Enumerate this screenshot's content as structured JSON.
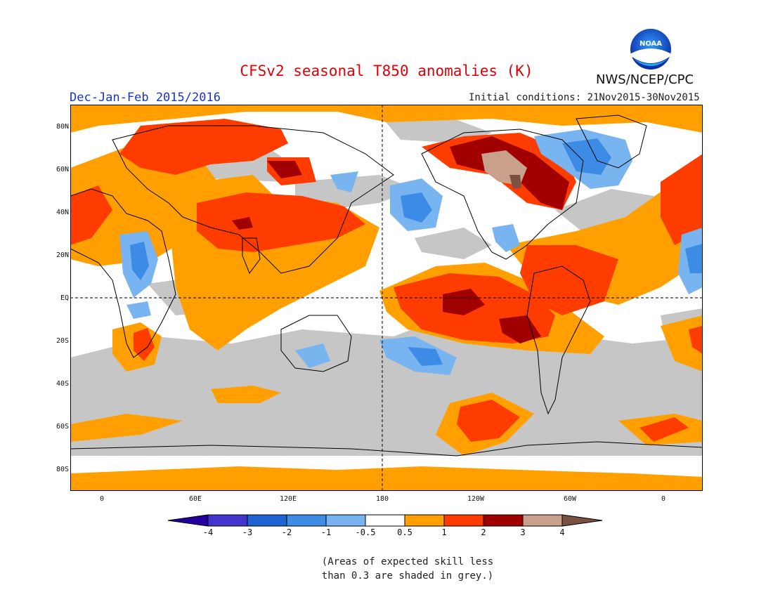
{
  "header": {
    "title": "CFSv2 seasonal T850 anomalies (K)",
    "season": "Dec-Jan-Feb 2015/2016",
    "initial_conditions": "Initial conditions: 21Nov2015-30Nov2015",
    "agency": "NWS/NCEP/CPC",
    "logo_text": "NOAA"
  },
  "map": {
    "lat_labels": [
      "80N",
      "60N",
      "40N",
      "20N",
      "EQ",
      "20S",
      "40S",
      "60S",
      "80S"
    ],
    "lon_labels": [
      "0",
      "60E",
      "120E",
      "180",
      "120W",
      "60W",
      "0"
    ]
  },
  "legend": {
    "labels": [
      "-4",
      "-3",
      "-2",
      "-1",
      "-0.5",
      "0.5",
      "1",
      "2",
      "3",
      "4"
    ],
    "colors": [
      "#2200a0",
      "#4433cc",
      "#1e64d2",
      "#3c8ce6",
      "#78b4f0",
      "#ffffff",
      "#ffa000",
      "#ff3c00",
      "#a00000",
      "#c8a08c",
      "#7a5040"
    ]
  },
  "note": {
    "line1": "(Areas of expected skill less",
    "line2": "than 0.3 are shaded in grey.)"
  }
}
